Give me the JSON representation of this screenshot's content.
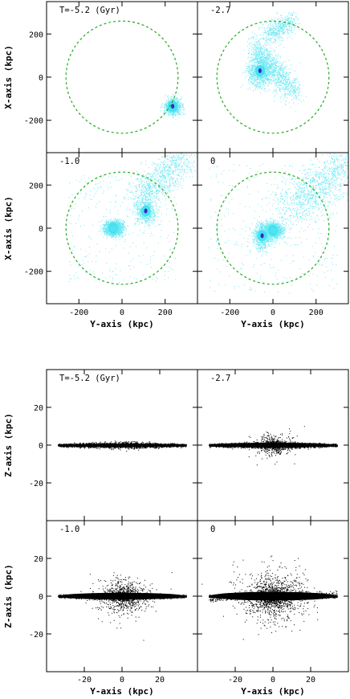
{
  "chart_data": [
    {
      "type": "scatter",
      "projection": "x-y",
      "xlabel": "Y-axis (kpc)",
      "ylabel": "X-axis (kpc)",
      "xlim": [
        -350,
        350
      ],
      "ylim": [
        -350,
        350
      ],
      "xticks": [
        -200,
        0,
        200
      ],
      "yticks": [
        -200,
        0,
        200
      ],
      "xtick_labels": [
        "-200",
        "0",
        "200"
      ],
      "ytick_labels": [
        "-200",
        "0",
        "200"
      ],
      "grid": false,
      "circle_radius": 260,
      "colors": {
        "particles": "#3fe0ee",
        "core": "#3a22cc",
        "circle": "#22aa22",
        "frame": "#000000"
      },
      "panels": [
        {
          "label": "T=-5.2 (Gyr)",
          "satellite": [
            235,
            -135
          ],
          "host_core": null
        },
        {
          "label": "-2.7",
          "satellite": [
            -60,
            30
          ],
          "host_core": null
        },
        {
          "label": "-1.0",
          "satellite": [
            110,
            80
          ],
          "host_core": [
            -40,
            0
          ]
        },
        {
          "label": "0",
          "satellite": [
            -50,
            -35
          ],
          "host_core": [
            0,
            -10
          ]
        }
      ]
    },
    {
      "type": "scatter",
      "projection": "y-z",
      "xlabel": "Y-axis (kpc)",
      "ylabel": "Z-axis (kpc)",
      "xlim": [
        -40,
        40
      ],
      "ylim": [
        -40,
        40
      ],
      "xticks": [
        -20,
        0,
        20
      ],
      "yticks": [
        -20,
        0,
        20
      ],
      "xtick_labels": [
        "-20",
        "0",
        "20"
      ],
      "ytick_labels": [
        "-20",
        "0",
        "20"
      ],
      "grid": false,
      "colors": {
        "particles": "#000000",
        "frame": "#000000"
      },
      "panels": [
        {
          "label": "T=-5.2 (Gyr)",
          "disk_half_length": 34,
          "bulge": 0
        },
        {
          "label": "-2.7",
          "disk_half_length": 34,
          "bulge": 1
        },
        {
          "label": "-1.0",
          "disk_half_length": 34,
          "bulge": 2
        },
        {
          "label": "0",
          "disk_half_length": 34,
          "bulge": 3
        }
      ]
    }
  ]
}
